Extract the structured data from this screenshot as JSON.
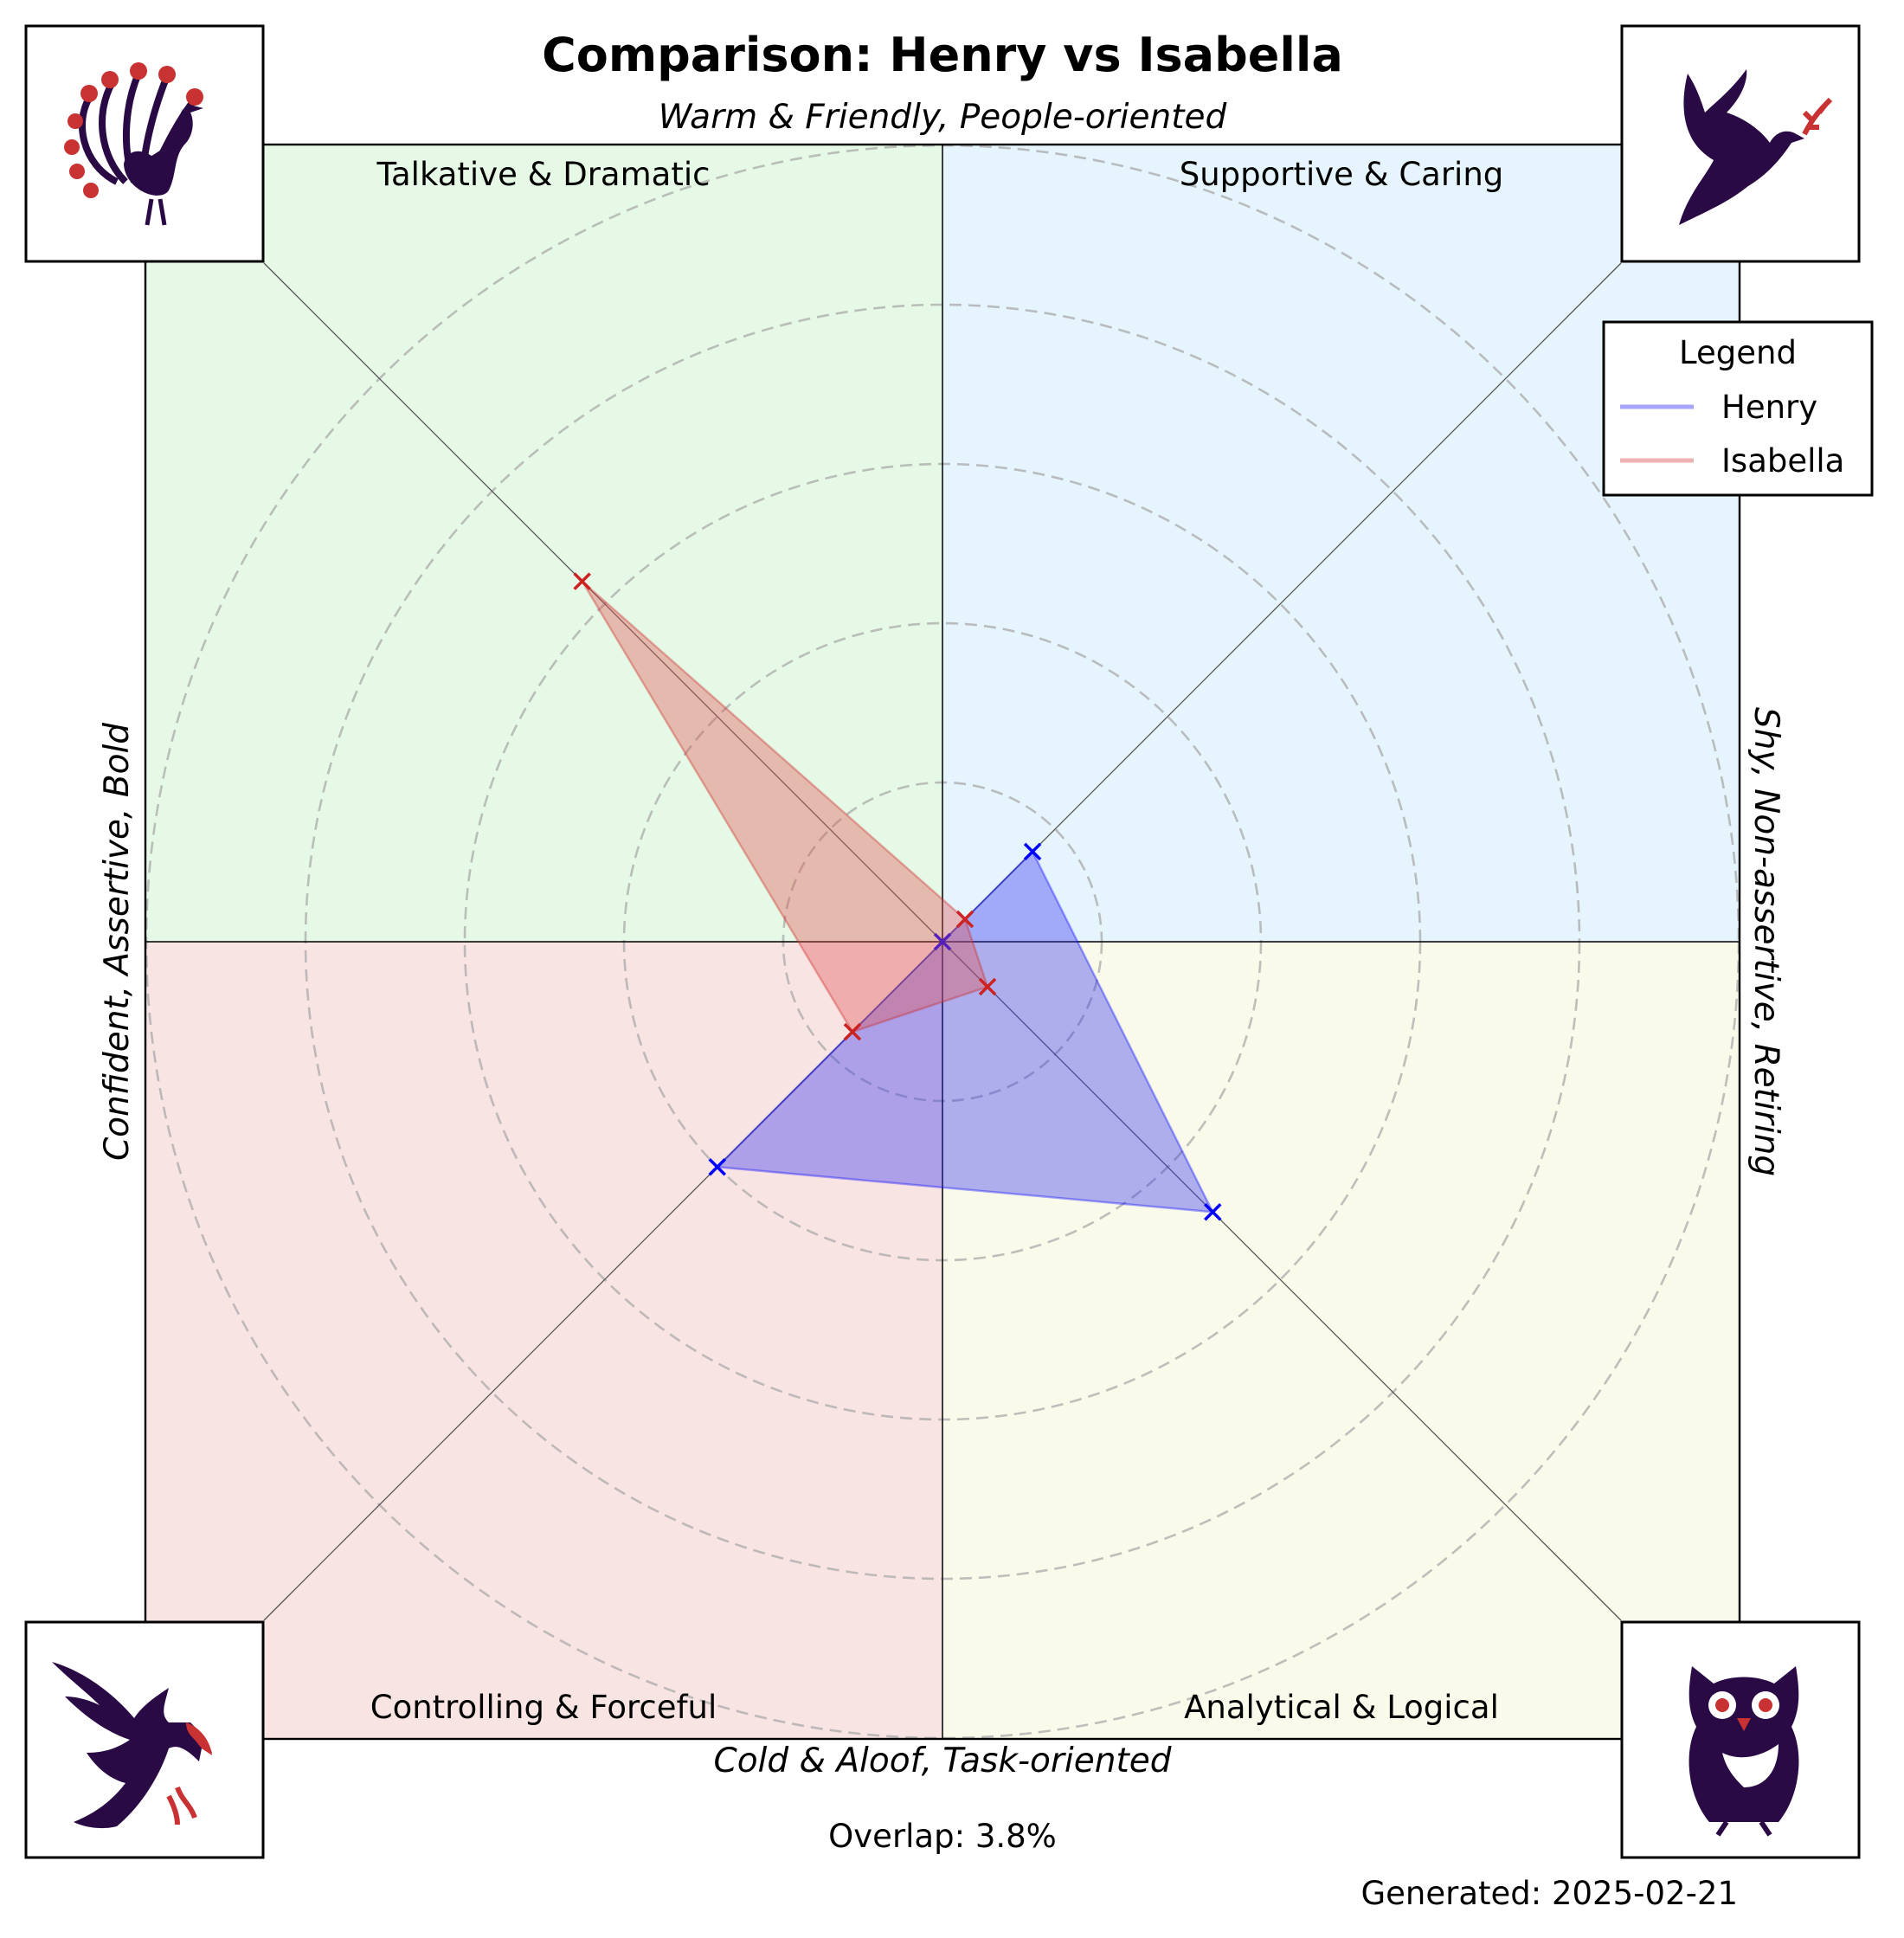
{
  "chart_data": {
    "type": "radar-quadrant",
    "title": "Comparison: Henry vs Isabella",
    "axis_labels": {
      "top": "Warm & Friendly, People-oriented",
      "bottom": "Cold & Aloof, Task-oriented",
      "left": "Confident, Assertive, Bold",
      "right": "Shy, Non-assertive, Retiring"
    },
    "quadrants": [
      {
        "name": "Talkative & Dramatic",
        "position": "top-left",
        "color": "#e6f9e6",
        "icon": "peacock-icon"
      },
      {
        "name": "Supportive & Caring",
        "position": "top-right",
        "color": "#e6f4fd",
        "icon": "dove-icon"
      },
      {
        "name": "Controlling & Forceful",
        "position": "bottom-left",
        "color": "#f9e4e4",
        "icon": "eagle-icon"
      },
      {
        "name": "Analytical & Logical",
        "position": "bottom-right",
        "color": "#fafaeb",
        "icon": "owl-icon"
      }
    ],
    "axes_order": [
      "Supportive & Caring",
      "Talkative & Dramatic",
      "Controlling & Forceful",
      "Analytical & Logical"
    ],
    "r_max": 5,
    "ring_count": 5,
    "series": [
      {
        "name": "Henry",
        "color": "#0000ff",
        "fill": "#3333ee",
        "values": [
          0.8,
          0.0,
          2.0,
          2.4
        ]
      },
      {
        "name": "Isabella",
        "color": "#cc2222",
        "fill": "#e35555",
        "values": [
          0.2,
          3.2,
          0.8,
          0.4
        ]
      }
    ],
    "legend": {
      "title": "Legend",
      "position": "top-right"
    },
    "overlap_label": "Overlap: 3.8%",
    "footer": "Generated: 2025-02-21",
    "colors": {
      "icon_primary": "#2a0a45",
      "icon_accent": "#c83232"
    }
  }
}
